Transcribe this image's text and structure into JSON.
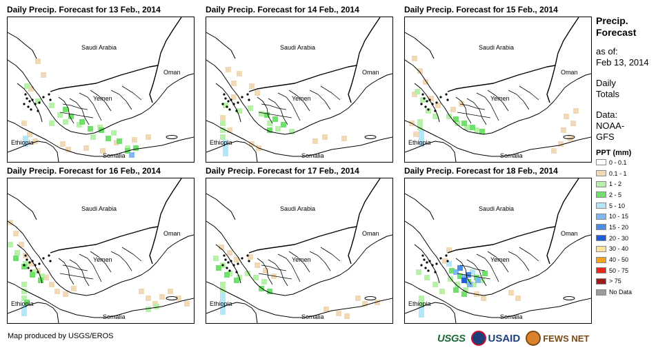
{
  "panels": [
    {
      "title": "Daily Precip. Forecast for 13 Feb., 2014",
      "labels": {
        "saudi": "Saudi Arabia",
        "oman": "Oman",
        "yemen": "Yemen",
        "ethiopia": "Ethiopia",
        "somalia": "Somalia"
      }
    },
    {
      "title": "Daily Precip. Forecast for 14 Feb., 2014",
      "labels": {
        "saudi": "Saudi Arabia",
        "oman": "Oman",
        "yemen": "Yemen",
        "ethiopia": "Ethiopia",
        "somalia": "Somalia"
      }
    },
    {
      "title": "Daily Precip. Forecast for 15 Feb., 2014",
      "labels": {
        "saudi": "Saudi Arabia",
        "oman": "Oman",
        "yemen": "Yemen",
        "ethiopia": "Ethiopia",
        "somalia": "Somalia"
      }
    },
    {
      "title": "Daily Precip. Forecast for 16 Feb., 2014",
      "labels": {
        "saudi": "Saudi Arabia",
        "oman": "Oman",
        "yemen": "Yemen",
        "ethiopia": "Ethiopia",
        "somalia": "Somalia"
      }
    },
    {
      "title": "Daily Precip. Forecast for 17 Feb., 2014",
      "labels": {
        "saudi": "Saudi Arabia",
        "oman": "Oman",
        "yemen": "Yemen",
        "ethiopia": "Ethiopia",
        "somalia": "Somalia"
      }
    },
    {
      "title": "Daily Precip. Forecast for 18 Feb., 2014",
      "labels": {
        "saudi": "Saudi Arabia",
        "oman": "Oman",
        "yemen": "Yemen",
        "ethiopia": "Ethiopia",
        "somalia": "Somalia"
      }
    }
  ],
  "legend": {
    "title_line1": "Precip.",
    "title_line2": "Forecast",
    "asof_line1": "as of:",
    "asof_line2": "Feb 13, 2014",
    "daily_line1": "Daily",
    "daily_line2": "Totals",
    "data_line1": "Data:",
    "data_line2": "NOAA-",
    "data_line3": "GFS",
    "ppt_header": "PPT (mm)",
    "items": [
      {
        "label": "0 - 0.1",
        "color": "#ffffff"
      },
      {
        "label": "0.1 - 1",
        "color": "#f1d9b5"
      },
      {
        "label": "1 - 2",
        "color": "#b7f0a8"
      },
      {
        "label": "2 - 5",
        "color": "#6fe06a"
      },
      {
        "label": "5 - 10",
        "color": "#b4e6f7"
      },
      {
        "label": "10 - 15",
        "color": "#7fb8ef"
      },
      {
        "label": "15 - 20",
        "color": "#4a8be6"
      },
      {
        "label": "20 - 30",
        "color": "#1f5fd6"
      },
      {
        "label": "30 - 40",
        "color": "#fbe39a"
      },
      {
        "label": "40 - 50",
        "color": "#f5a31b"
      },
      {
        "label": "50 - 75",
        "color": "#e8281b"
      },
      {
        "label": "> 75",
        "color": "#9c1c1c"
      },
      {
        "label": "No Data",
        "color": "#9a9a9a"
      }
    ]
  },
  "footer": {
    "credit": "Map produced by USGS/EROS",
    "logo_usgs": "USGS",
    "logo_usaid": "USAID",
    "logo_fews": "FEWS NET"
  }
}
